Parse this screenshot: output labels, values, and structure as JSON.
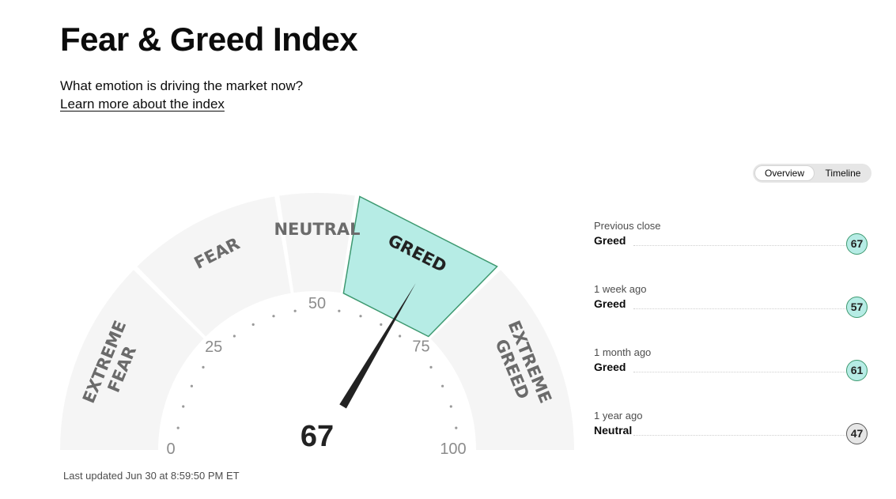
{
  "header": {
    "title": "Fear & Greed Index",
    "subtitle": "What emotion is driving the market now?",
    "learn_link": "Learn more about the index"
  },
  "view_toggle": {
    "options": [
      "Overview",
      "Timeline"
    ],
    "selected": "Overview"
  },
  "gauge": {
    "value": 67,
    "value_label": "67",
    "current_rating": "Greed",
    "segments": [
      {
        "lines": [
          "EXTREME",
          "FEAR"
        ],
        "active": false
      },
      {
        "lines": [
          "FEAR"
        ],
        "active": false
      },
      {
        "lines": [
          "NEUTRAL"
        ],
        "active": false
      },
      {
        "lines": [
          "GREED"
        ],
        "active": true
      },
      {
        "lines": [
          "EXTREME",
          "GREED"
        ],
        "active": false
      }
    ],
    "tick_labels": [
      "0",
      "25",
      "50",
      "75",
      "100"
    ],
    "last_updated": "Last updated Jun 30 at 8:59:50 PM ET"
  },
  "history": [
    {
      "period": "Previous close",
      "rating": "Greed",
      "value": "67"
    },
    {
      "period": "1 week ago",
      "rating": "Greed",
      "value": "57"
    },
    {
      "period": "1 month ago",
      "rating": "Greed",
      "value": "61"
    },
    {
      "period": "1 year ago",
      "rating": "Neutral",
      "value": "47"
    }
  ],
  "colors": {
    "active_segment_fill": "#b6ece5",
    "active_segment_stroke": "#3d9970",
    "inactive_segment_fill": "#f5f5f5",
    "needle": "#222222",
    "neutral_badge": "#e6e6e6"
  }
}
